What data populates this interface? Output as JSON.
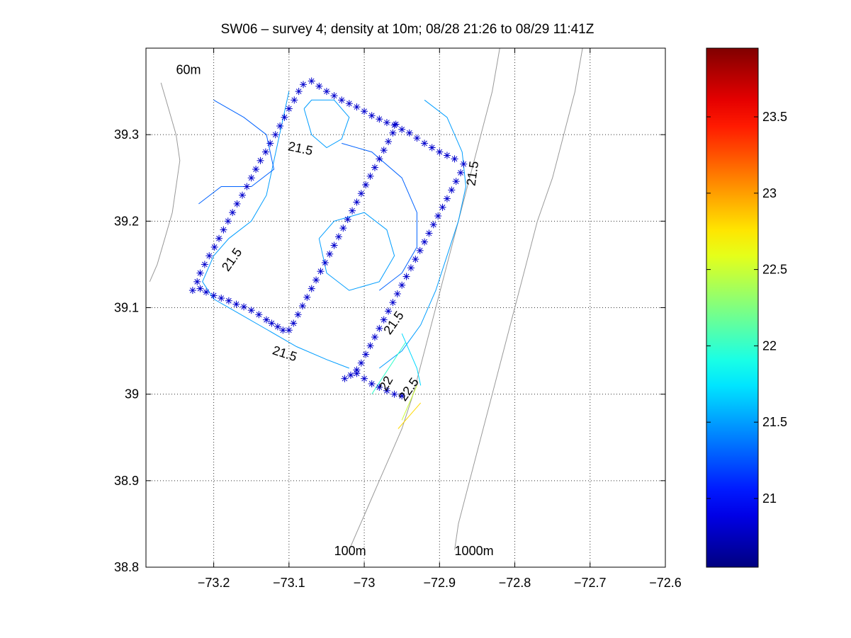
{
  "chart_data": {
    "type": "contour",
    "title": "SW06 – survey 4; density at 10m; 08/28 21:26 to 08/29 11:41Z",
    "xlim": [
      -73.29,
      -72.6
    ],
    "ylim": [
      38.8,
      39.4
    ],
    "xticks": [
      -73.2,
      -73.1,
      -73.0,
      -72.9,
      -72.8,
      -72.7,
      -72.6
    ],
    "xtick_labels": [
      "−73.2",
      "−73.1",
      "−73",
      "−72.9",
      "−72.8",
      "−72.7",
      "−72.6"
    ],
    "yticks": [
      38.8,
      38.9,
      39.0,
      39.1,
      39.2,
      39.3
    ],
    "ytick_labels": [
      "38.8",
      "38.9",
      "39",
      "39.1",
      "39.2",
      "39.3"
    ],
    "grid": true,
    "colorbar": {
      "range": [
        20.55,
        23.95
      ],
      "ticks": [
        21,
        21.5,
        22,
        22.5,
        23,
        23.5
      ],
      "tick_labels": [
        "21",
        "21.5",
        "22",
        "22.5",
        "23",
        "23.5"
      ],
      "colormap": "jet"
    },
    "annotations": [
      {
        "text": "60m",
        "x": -73.25,
        "y": 39.37
      },
      {
        "text": "100m",
        "x": -73.04,
        "y": 38.814
      },
      {
        "text": "1000m",
        "x": -72.88,
        "y": 38.814
      }
    ],
    "contour_labels": [
      {
        "text": "21.5",
        "x": -73.085,
        "y": 39.283,
        "angle": 12
      },
      {
        "text": "21.5",
        "x": -72.855,
        "y": 39.255,
        "angle": -82
      },
      {
        "text": "21.5",
        "x": -73.175,
        "y": 39.155,
        "angle": -55
      },
      {
        "text": "21.5",
        "x": -72.96,
        "y": 39.082,
        "angle": -55
      },
      {
        "text": "21.5",
        "x": -73.106,
        "y": 39.046,
        "angle": 18
      },
      {
        "text": "22",
        "x": -72.97,
        "y": 39.012,
        "angle": -60
      },
      {
        "text": "22.5",
        "x": -72.94,
        "y": 39.005,
        "angle": -55
      }
    ],
    "stations": [
      [
        -73.228,
        39.12
      ],
      [
        -73.222,
        39.13
      ],
      [
        -73.218,
        39.14
      ],
      [
        -73.212,
        39.15
      ],
      [
        -73.206,
        39.16
      ],
      [
        -73.199,
        39.17
      ],
      [
        -73.193,
        39.18
      ],
      [
        -73.187,
        39.19
      ],
      [
        -73.181,
        39.2
      ],
      [
        -73.175,
        39.21
      ],
      [
        -73.169,
        39.22
      ],
      [
        -73.162,
        39.23
      ],
      [
        -73.156,
        39.24
      ],
      [
        -73.15,
        39.25
      ],
      [
        -73.144,
        39.26
      ],
      [
        -73.138,
        39.27
      ],
      [
        -73.131,
        39.28
      ],
      [
        -73.125,
        39.29
      ],
      [
        -73.118,
        39.3
      ],
      [
        -73.112,
        39.31
      ],
      [
        -73.106,
        39.32
      ],
      [
        -73.1,
        39.33
      ],
      [
        -73.093,
        39.34
      ],
      [
        -73.087,
        39.35
      ],
      [
        -73.081,
        39.358
      ],
      [
        -73.07,
        39.362
      ],
      [
        -73.06,
        39.356
      ],
      [
        -73.05,
        39.35
      ],
      [
        -73.04,
        39.345
      ],
      [
        -73.03,
        39.34
      ],
      [
        -73.02,
        39.336
      ],
      [
        -73.01,
        39.332
      ],
      [
        -73.0,
        39.327
      ],
      [
        -72.99,
        39.322
      ],
      [
        -72.98,
        39.318
      ],
      [
        -72.97,
        39.314
      ],
      [
        -72.96,
        39.311
      ],
      [
        -72.95,
        39.306
      ],
      [
        -72.94,
        39.302
      ],
      [
        -72.93,
        39.296
      ],
      [
        -72.92,
        39.29
      ],
      [
        -72.91,
        39.285
      ],
      [
        -72.9,
        39.28
      ],
      [
        -72.89,
        39.276
      ],
      [
        -72.88,
        39.272
      ],
      [
        -72.868,
        39.266
      ],
      [
        -72.872,
        39.256
      ],
      [
        -72.878,
        39.246
      ],
      [
        -72.884,
        39.236
      ],
      [
        -72.89,
        39.226
      ],
      [
        -72.896,
        39.216
      ],
      [
        -72.902,
        39.206
      ],
      [
        -72.908,
        39.196
      ],
      [
        -72.914,
        39.186
      ],
      [
        -72.92,
        39.176
      ],
      [
        -72.926,
        39.166
      ],
      [
        -72.932,
        39.156
      ],
      [
        -72.938,
        39.146
      ],
      [
        -72.944,
        39.136
      ],
      [
        -72.95,
        39.126
      ],
      [
        -72.956,
        39.116
      ],
      [
        -72.962,
        39.106
      ],
      [
        -72.968,
        39.096
      ],
      [
        -72.974,
        39.086
      ],
      [
        -72.98,
        39.076
      ],
      [
        -72.986,
        39.066
      ],
      [
        -72.992,
        39.056
      ],
      [
        -72.998,
        39.046
      ],
      [
        -73.004,
        39.036
      ],
      [
        -73.01,
        39.028
      ],
      [
        -73.018,
        39.022
      ],
      [
        -73.026,
        39.018
      ],
      [
        -73.01,
        39.024
      ],
      [
        -73.0,
        39.018
      ],
      [
        -72.99,
        39.012
      ],
      [
        -72.98,
        39.008
      ],
      [
        -72.97,
        39.004
      ],
      [
        -72.96,
        39.0
      ],
      [
        -72.95,
        38.998
      ],
      [
        -72.958,
        39.312
      ],
      [
        -72.962,
        39.302
      ],
      [
        -72.968,
        39.292
      ],
      [
        -72.974,
        39.282
      ],
      [
        -72.98,
        39.272
      ],
      [
        -72.986,
        39.262
      ],
      [
        -72.992,
        39.252
      ],
      [
        -72.998,
        39.242
      ],
      [
        -73.004,
        39.232
      ],
      [
        -73.01,
        39.222
      ],
      [
        -73.016,
        39.212
      ],
      [
        -73.022,
        39.202
      ],
      [
        -73.028,
        39.192
      ],
      [
        -73.034,
        39.182
      ],
      [
        -73.04,
        39.172
      ],
      [
        -73.046,
        39.162
      ],
      [
        -73.052,
        39.152
      ],
      [
        -73.058,
        39.142
      ],
      [
        -73.064,
        39.132
      ],
      [
        -73.07,
        39.122
      ],
      [
        -73.076,
        39.112
      ],
      [
        -73.082,
        39.102
      ],
      [
        -73.088,
        39.092
      ],
      [
        -73.094,
        39.082
      ],
      [
        -73.1,
        39.074
      ],
      [
        -73.108,
        39.074
      ],
      [
        -73.115,
        39.078
      ],
      [
        -73.123,
        39.082
      ],
      [
        -73.13,
        39.086
      ],
      [
        -73.14,
        39.092
      ],
      [
        -73.15,
        39.097
      ],
      [
        -73.16,
        39.101
      ],
      [
        -73.17,
        39.104
      ],
      [
        -73.18,
        39.108
      ],
      [
        -73.19,
        39.111
      ],
      [
        -73.2,
        39.114
      ],
      [
        -73.21,
        39.118
      ],
      [
        -73.218,
        39.122
      ]
    ],
    "bathymetry_contours": [
      {
        "label": "60m",
        "points": [
          [
            -73.27,
            39.36
          ],
          [
            -73.26,
            39.33
          ],
          [
            -73.25,
            39.3
          ],
          [
            -73.245,
            39.27
          ],
          [
            -73.25,
            39.24
          ],
          [
            -73.255,
            39.21
          ],
          [
            -73.265,
            39.18
          ],
          [
            -73.275,
            39.15
          ],
          [
            -73.285,
            39.13
          ]
        ]
      },
      {
        "label": "100m",
        "points": [
          [
            -72.82,
            39.4
          ],
          [
            -72.83,
            39.35
          ],
          [
            -72.845,
            39.3
          ],
          [
            -72.86,
            39.25
          ],
          [
            -72.875,
            39.2
          ],
          [
            -72.89,
            39.15
          ],
          [
            -72.905,
            39.1
          ],
          [
            -72.92,
            39.05
          ],
          [
            -72.935,
            39.0
          ],
          [
            -72.95,
            38.96
          ],
          [
            -72.965,
            38.93
          ],
          [
            -72.98,
            38.9
          ],
          [
            -72.995,
            38.87
          ],
          [
            -73.01,
            38.84
          ],
          [
            -73.02,
            38.82
          ]
        ]
      },
      {
        "label": "1000m",
        "points": [
          [
            -72.71,
            39.4
          ],
          [
            -72.72,
            39.35
          ],
          [
            -72.735,
            39.3
          ],
          [
            -72.75,
            39.25
          ],
          [
            -72.77,
            39.2
          ],
          [
            -72.785,
            39.15
          ],
          [
            -72.8,
            39.1
          ],
          [
            -72.815,
            39.05
          ],
          [
            -72.83,
            39.0
          ],
          [
            -72.845,
            38.95
          ],
          [
            -72.86,
            38.9
          ],
          [
            -72.875,
            38.85
          ],
          [
            -72.88,
            38.82
          ]
        ]
      }
    ],
    "density_contours": [
      {
        "level": 21.5,
        "points": [
          [
            -73.1,
            39.35
          ],
          [
            -73.11,
            39.31
          ],
          [
            -73.12,
            39.27
          ],
          [
            -73.13,
            39.23
          ],
          [
            -73.15,
            39.2
          ],
          [
            -73.18,
            39.18
          ],
          [
            -73.2,
            39.16
          ],
          [
            -73.215,
            39.13
          ],
          [
            -73.2,
            39.11
          ],
          [
            -73.17,
            39.095
          ],
          [
            -73.13,
            39.075
          ],
          [
            -73.09,
            39.055
          ],
          [
            -73.05,
            39.04
          ],
          [
            -73.02,
            39.03
          ]
        ]
      },
      {
        "level": 21.5,
        "points": [
          [
            -73.08,
            39.33
          ],
          [
            -73.07,
            39.3
          ],
          [
            -73.05,
            39.285
          ],
          [
            -73.03,
            39.295
          ],
          [
            -73.02,
            39.32
          ],
          [
            -73.04,
            39.34
          ],
          [
            -73.07,
            39.34
          ],
          [
            -73.08,
            39.33
          ]
        ]
      },
      {
        "level": 21.5,
        "points": [
          [
            -72.92,
            39.34
          ],
          [
            -72.89,
            39.32
          ],
          [
            -72.87,
            39.28
          ],
          [
            -72.865,
            39.24
          ],
          [
            -72.875,
            39.2
          ],
          [
            -72.89,
            39.16
          ],
          [
            -72.905,
            39.12
          ],
          [
            -72.925,
            39.08
          ],
          [
            -72.95,
            39.05
          ],
          [
            -72.98,
            39.03
          ]
        ]
      },
      {
        "level": 21.5,
        "points": [
          [
            -73.06,
            39.18
          ],
          [
            -73.04,
            39.2
          ],
          [
            -73.0,
            39.21
          ],
          [
            -72.97,
            39.19
          ],
          [
            -72.96,
            39.16
          ],
          [
            -72.98,
            39.13
          ],
          [
            -73.02,
            39.12
          ],
          [
            -73.05,
            39.14
          ],
          [
            -73.06,
            39.18
          ]
        ]
      },
      {
        "level": 21.3,
        "points": [
          [
            -73.2,
            39.34
          ],
          [
            -73.16,
            39.32
          ],
          [
            -73.13,
            39.3
          ],
          [
            -73.12,
            39.26
          ],
          [
            -73.15,
            39.24
          ],
          [
            -73.19,
            39.24
          ],
          [
            -73.22,
            39.22
          ]
        ]
      },
      {
        "level": 21.3,
        "points": [
          [
            -73.03,
            39.29
          ],
          [
            -72.99,
            39.28
          ],
          [
            -72.95,
            39.25
          ],
          [
            -72.93,
            39.21
          ],
          [
            -72.93,
            39.17
          ],
          [
            -72.95,
            39.14
          ],
          [
            -72.98,
            39.12
          ]
        ]
      },
      {
        "level": 21.7,
        "points": [
          [
            -72.95,
            39.07
          ],
          [
            -72.94,
            39.05
          ],
          [
            -72.93,
            39.03
          ],
          [
            -72.925,
            39.01
          ]
        ]
      },
      {
        "level": 22.0,
        "points": [
          [
            -72.99,
            39.0
          ],
          [
            -72.975,
            39.02
          ],
          [
            -72.96,
            39.04
          ],
          [
            -72.945,
            39.06
          ]
        ]
      },
      {
        "level": 22.5,
        "points": [
          [
            -72.95,
            38.97
          ],
          [
            -72.94,
            38.99
          ],
          [
            -72.93,
            39.01
          ]
        ]
      },
      {
        "level": 22.8,
        "points": [
          [
            -72.955,
            38.96
          ],
          [
            -72.94,
            38.975
          ],
          [
            -72.925,
            38.99
          ]
        ]
      }
    ]
  }
}
